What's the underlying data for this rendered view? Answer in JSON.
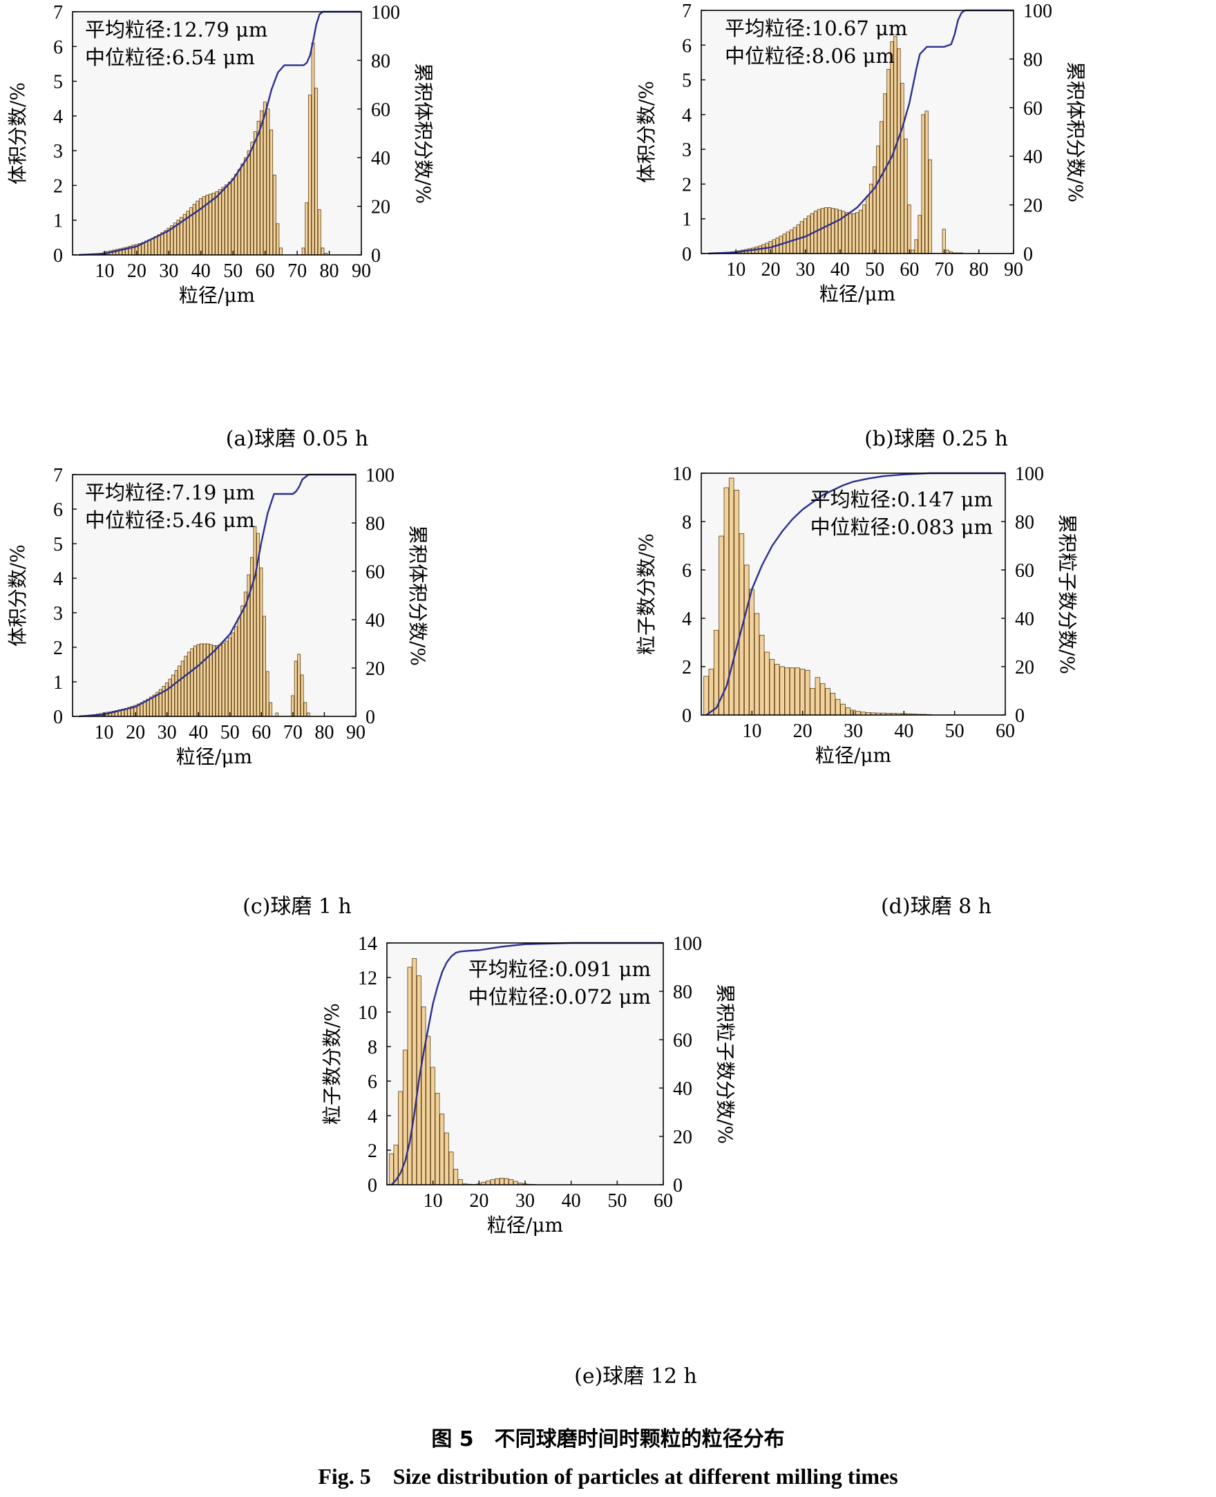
{
  "figure": {
    "caption_cn": "图 5　不同球磨时间时颗粒的粒径分布",
    "caption_en": "Fig. 5　Size distribution of particles at different milling times"
  },
  "colors": {
    "bar_fill": "#f2d29c",
    "bar_edge": "#5a3c10",
    "curve": "#2b2f8f",
    "plot_bg": "#f7f7f7"
  },
  "chart_data": [
    {
      "id": "a",
      "type": "bar",
      "subcaption": "(a)球磨 0.05 h",
      "xlabel": "粒径/μm",
      "ylabel": "体积分数/%",
      "y2label": "累积体积分数/%",
      "annotations": [
        "平均粒径:12.79 μm",
        "中位粒径:6.54 μm"
      ],
      "xlim": [
        0,
        90
      ],
      "ylim": [
        0,
        7
      ],
      "y2lim": [
        0,
        100
      ],
      "xticks": [
        10,
        20,
        30,
        40,
        50,
        60,
        70,
        80,
        90
      ],
      "yticks": [
        0,
        1,
        2,
        3,
        4,
        5,
        6,
        7
      ],
      "y2ticks": [
        0,
        20,
        40,
        60,
        80,
        100
      ],
      "bar_width": 1,
      "bars": {
        "x": [
          9,
          10,
          11,
          12,
          13,
          14,
          15,
          16,
          17,
          18,
          19,
          20,
          21,
          22,
          23,
          24,
          25,
          26,
          27,
          28,
          29,
          30,
          31,
          32,
          33,
          34,
          35,
          36,
          37,
          38,
          39,
          40,
          41,
          42,
          43,
          44,
          45,
          46,
          47,
          48,
          49,
          50,
          51,
          52,
          53,
          54,
          55,
          56,
          57,
          58,
          59,
          60,
          61,
          62,
          63,
          64,
          65,
          72,
          73,
          74,
          75,
          76,
          77,
          78,
          79
        ],
        "y": [
          0.05,
          0.08,
          0.1,
          0.12,
          0.14,
          0.16,
          0.18,
          0.2,
          0.22,
          0.25,
          0.28,
          0.3,
          0.33,
          0.36,
          0.4,
          0.44,
          0.48,
          0.53,
          0.58,
          0.64,
          0.7,
          0.77,
          0.84,
          0.92,
          1.0,
          1.08,
          1.17,
          1.26,
          1.36,
          1.46,
          1.55,
          1.62,
          1.68,
          1.72,
          1.75,
          1.78,
          1.82,
          1.88,
          1.95,
          2.02,
          2.1,
          2.2,
          2.32,
          2.46,
          2.62,
          2.8,
          3.0,
          3.25,
          3.55,
          3.85,
          4.15,
          4.4,
          4.2,
          3.6,
          2.3,
          0.9,
          0.2,
          0.2,
          1.5,
          4.6,
          6.1,
          4.8,
          1.3,
          0.2,
          0.05
        ]
      },
      "cumulative": {
        "x": [
          2,
          10,
          20,
          30,
          40,
          45,
          50,
          55,
          58,
          60,
          62,
          64,
          66,
          70,
          72,
          73,
          74,
          75,
          76,
          77,
          78,
          80,
          90
        ],
        "y": [
          0,
          0.5,
          3.5,
          10,
          19,
          24,
          31,
          41,
          50,
          58,
          68,
          75,
          78,
          78,
          78,
          79,
          82,
          88,
          95,
          99,
          100,
          100,
          100
        ]
      }
    },
    {
      "id": "b",
      "type": "bar",
      "subcaption": "(b)球磨 0.25 h",
      "xlabel": "粒径/μm",
      "ylabel": "体积分数/%",
      "y2label": "累积体积分数/%",
      "annotations": [
        "平均粒径:10.67 μm",
        "中位粒径:8.06 μm"
      ],
      "xlim": [
        0,
        90
      ],
      "ylim": [
        0,
        7
      ],
      "y2lim": [
        0,
        100
      ],
      "xticks": [
        10,
        20,
        30,
        40,
        50,
        60,
        70,
        80,
        90
      ],
      "yticks": [
        0,
        1,
        2,
        3,
        4,
        5,
        6,
        7
      ],
      "y2ticks": [
        0,
        20,
        40,
        60,
        80,
        100
      ],
      "bar_width": 1,
      "bars": {
        "x": [
          9,
          10,
          11,
          12,
          13,
          14,
          15,
          16,
          17,
          18,
          19,
          20,
          21,
          22,
          23,
          24,
          25,
          26,
          27,
          28,
          29,
          30,
          31,
          32,
          33,
          34,
          35,
          36,
          37,
          38,
          39,
          40,
          41,
          42,
          43,
          44,
          45,
          46,
          47,
          48,
          49,
          50,
          51,
          52,
          53,
          54,
          55,
          56,
          57,
          58,
          59,
          60,
          61,
          62,
          63,
          64,
          65,
          66,
          70,
          71,
          72,
          73,
          74,
          75
        ],
        "y": [
          0.05,
          0.06,
          0.08,
          0.1,
          0.12,
          0.14,
          0.16,
          0.19,
          0.22,
          0.26,
          0.3,
          0.35,
          0.4,
          0.45,
          0.5,
          0.56,
          0.62,
          0.68,
          0.75,
          0.83,
          0.92,
          1.0,
          1.08,
          1.15,
          1.22,
          1.27,
          1.3,
          1.32,
          1.32,
          1.3,
          1.28,
          1.25,
          1.22,
          1.18,
          1.15,
          1.15,
          1.18,
          1.25,
          1.4,
          1.65,
          2.0,
          2.5,
          3.1,
          3.8,
          4.6,
          5.3,
          6.1,
          6.25,
          5.9,
          4.9,
          3.3,
          1.4,
          0.1,
          0.4,
          1.1,
          4.0,
          4.1,
          2.7,
          0.7,
          0.1,
          0.05,
          0.02,
          0.02,
          0.02
        ]
      },
      "cumulative": {
        "x": [
          2,
          10,
          20,
          30,
          40,
          45,
          50,
          55,
          58,
          60,
          62,
          63,
          65,
          66,
          70,
          72,
          73,
          74,
          75,
          76,
          90
        ],
        "y": [
          0,
          0.5,
          2.5,
          7,
          14,
          19,
          27,
          40,
          52,
          62,
          76,
          82,
          85,
          85,
          85,
          86,
          90,
          96,
          99,
          100,
          100
        ]
      }
    },
    {
      "id": "c",
      "type": "bar",
      "subcaption": "(c)球磨 1 h",
      "xlabel": "粒径/μm",
      "ylabel": "体积分数/%",
      "y2label": "累积体积分数/%",
      "annotations": [
        "平均粒径:7.19 μm",
        "中位粒径:5.46 μm"
      ],
      "xlim": [
        0,
        90
      ],
      "ylim": [
        0,
        7
      ],
      "y2lim": [
        0,
        100
      ],
      "xticks": [
        10,
        20,
        30,
        40,
        50,
        60,
        70,
        80,
        90
      ],
      "yticks": [
        0,
        1,
        2,
        3,
        4,
        5,
        6,
        7
      ],
      "y2ticks": [
        0,
        20,
        40,
        60,
        80,
        100
      ],
      "bar_width": 1,
      "bars": {
        "x": [
          5,
          6,
          7,
          8,
          9,
          10,
          11,
          12,
          13,
          14,
          15,
          16,
          17,
          18,
          19,
          20,
          21,
          22,
          23,
          24,
          25,
          26,
          27,
          28,
          29,
          30,
          31,
          32,
          33,
          34,
          35,
          36,
          37,
          38,
          39,
          40,
          41,
          42,
          43,
          44,
          45,
          46,
          47,
          48,
          49,
          50,
          51,
          52,
          53,
          54,
          55,
          56,
          57,
          58,
          59,
          60,
          61,
          62,
          63,
          65,
          70,
          71,
          72,
          73,
          74,
          75
        ],
        "y": [
          0.02,
          0.04,
          0.05,
          0.07,
          0.08,
          0.1,
          0.12,
          0.13,
          0.15,
          0.17,
          0.19,
          0.21,
          0.23,
          0.26,
          0.29,
          0.32,
          0.36,
          0.4,
          0.45,
          0.5,
          0.56,
          0.62,
          0.7,
          0.78,
          0.87,
          0.97,
          1.08,
          1.2,
          1.33,
          1.46,
          1.6,
          1.74,
          1.86,
          1.96,
          2.04,
          2.08,
          2.1,
          2.1,
          2.1,
          2.08,
          2.05,
          2.05,
          2.08,
          2.12,
          2.18,
          2.28,
          2.42,
          2.6,
          2.85,
          3.2,
          3.6,
          4.1,
          4.6,
          5.5,
          5.3,
          4.3,
          2.9,
          1.3,
          0.4,
          0.1,
          0.6,
          1.6,
          1.8,
          1.2,
          0.4,
          0.1
        ]
      },
      "cumulative": {
        "x": [
          2,
          10,
          20,
          30,
          40,
          45,
          50,
          55,
          58,
          60,
          62,
          64,
          66,
          70,
          71,
          72,
          73,
          74,
          75,
          76,
          90
        ],
        "y": [
          0,
          0.8,
          4,
          11,
          21,
          27,
          34,
          46,
          58,
          72,
          84,
          92,
          92,
          92,
          93,
          95,
          98,
          99,
          100,
          100,
          100
        ]
      }
    },
    {
      "id": "d",
      "type": "bar",
      "subcaption": "(d)球磨 8 h",
      "xlabel": "粒径/μm",
      "ylabel": "粒子数分数/%",
      "y2label": "累积粒子数分数/%",
      "annotations": [
        "平均粒径:0.147 μm",
        "中位粒径:0.083 μm"
      ],
      "xlim": [
        0,
        60
      ],
      "ylim": [
        0,
        10
      ],
      "y2lim": [
        0,
        100
      ],
      "xticks": [
        10,
        20,
        30,
        40,
        50,
        60
      ],
      "yticks": [
        0,
        2,
        4,
        6,
        8,
        10
      ],
      "y2ticks": [
        0,
        20,
        40,
        60,
        80,
        100
      ],
      "bar_width": 1,
      "bars": {
        "x": [
          1,
          2,
          3,
          4,
          5,
          6,
          7,
          8,
          9,
          10,
          11,
          12,
          13,
          14,
          15,
          16,
          17,
          18,
          19,
          20,
          21,
          22,
          23,
          24,
          25,
          26,
          27,
          28,
          29,
          30,
          31,
          32,
          33,
          34,
          35,
          36,
          37,
          38,
          39,
          40,
          41,
          42,
          43,
          44,
          45
        ],
        "y": [
          1.6,
          1.9,
          3.5,
          7.4,
          9.4,
          9.8,
          9.3,
          7.5,
          6.2,
          5.2,
          4.2,
          3.3,
          2.6,
          2.3,
          2.1,
          2.0,
          1.95,
          1.95,
          1.95,
          1.9,
          1.85,
          1.1,
          1.55,
          1.3,
          1.1,
          0.9,
          0.65,
          0.45,
          0.3,
          0.2,
          0.15,
          0.12,
          0.1,
          0.09,
          0.08,
          0.08,
          0.07,
          0.07,
          0.06,
          0.06,
          0.05,
          0.04,
          0.03,
          0.03,
          0.02
        ]
      },
      "cumulative": {
        "x": [
          1,
          3,
          5,
          7,
          9,
          10,
          12,
          14,
          16,
          18,
          20,
          22,
          24,
          26,
          28,
          30,
          33,
          36,
          40,
          45,
          50,
          60
        ],
        "y": [
          0,
          3,
          12,
          28,
          44,
          52,
          62,
          70,
          76,
          81,
          85,
          88,
          91,
          93,
          95,
          96.5,
          97.8,
          98.8,
          99.5,
          100,
          100,
          100
        ]
      }
    },
    {
      "id": "e",
      "type": "bar",
      "subcaption": "(e)球磨 12 h",
      "xlabel": "粒径/μm",
      "ylabel": "粒子数分数/%",
      "y2label": "累积粒子数分数/%",
      "annotations": [
        "平均粒径:0.091 μm",
        "中位粒径:0.072 μm"
      ],
      "xlim": [
        0,
        60
      ],
      "ylim": [
        0,
        14
      ],
      "y2lim": [
        0,
        100
      ],
      "xticks": [
        10,
        20,
        30,
        40,
        50,
        60
      ],
      "yticks": [
        0,
        2,
        4,
        6,
        8,
        10,
        12,
        14
      ],
      "y2ticks": [
        0,
        20,
        40,
        60,
        80,
        100
      ],
      "bar_width": 1,
      "bars": {
        "x": [
          1,
          2,
          3,
          4,
          5,
          6,
          7,
          8,
          9,
          10,
          11,
          12,
          13,
          14,
          15,
          16,
          17,
          18,
          19,
          20,
          21,
          22,
          23,
          24,
          25,
          26,
          27,
          28,
          29,
          30,
          31,
          32
        ],
        "y": [
          1.8,
          2.3,
          5.4,
          7.8,
          12.6,
          13.1,
          12.1,
          10.3,
          8.6,
          6.8,
          5.3,
          4.1,
          3.0,
          1.9,
          0.9,
          0.3,
          0.05,
          0.03,
          0.02,
          0.05,
          0.15,
          0.22,
          0.3,
          0.35,
          0.38,
          0.36,
          0.3,
          0.2,
          0.1,
          0.05,
          0.03,
          0.02
        ]
      },
      "cumulative": {
        "x": [
          1,
          2,
          3,
          4,
          5,
          6,
          7,
          8,
          9,
          10,
          11,
          12,
          13,
          14,
          15,
          16,
          18,
          20,
          25,
          30,
          40,
          60
        ],
        "y": [
          0,
          2,
          5,
          10,
          18,
          30,
          44,
          55,
          65,
          75,
          82,
          88,
          92,
          94.5,
          96,
          96.5,
          96.8,
          97,
          98.5,
          99.5,
          100,
          100
        ]
      }
    }
  ]
}
